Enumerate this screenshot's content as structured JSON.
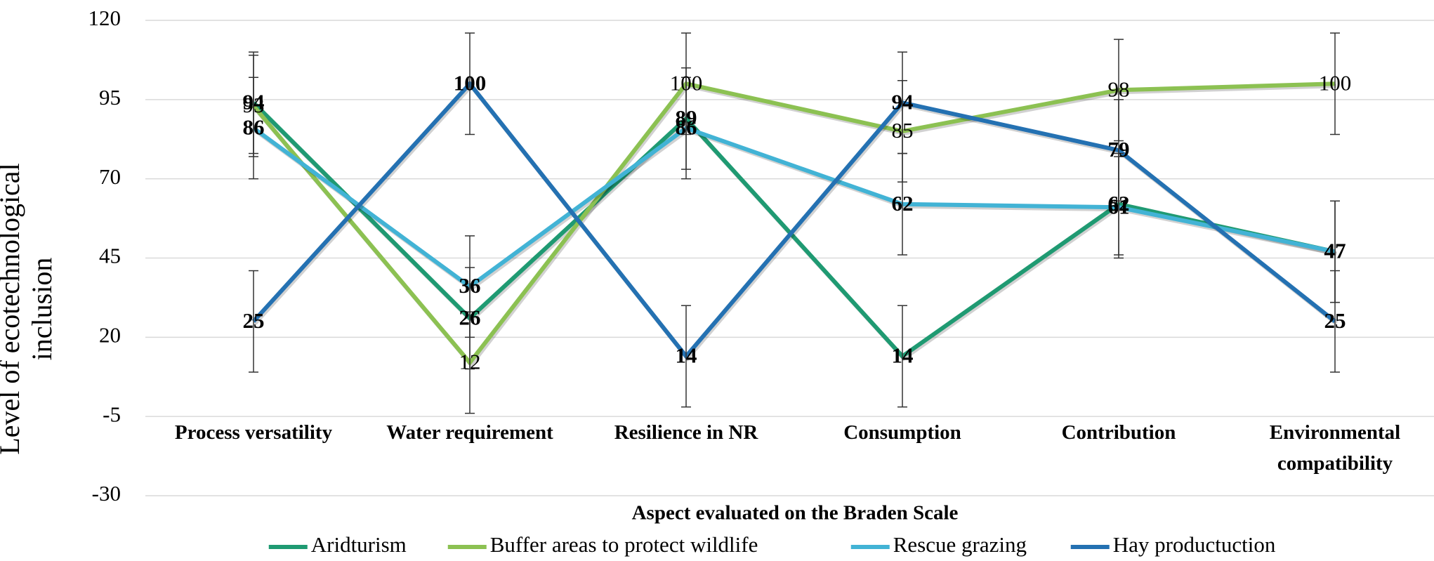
{
  "chart_data": {
    "type": "line",
    "y_label": "Level of ecotechnological inclusion",
    "x_label": "Aspect evaluated on the Braden Scale",
    "categories": [
      "Process versatility",
      "Water requirement",
      "Resilience in NR",
      "Consumption",
      "Contribution",
      "Environmental compatibility"
    ],
    "series": [
      {
        "name": "Aridturism",
        "color": "#1f9a72",
        "values": [
          94,
          26,
          89,
          14,
          62,
          47
        ],
        "errors": [
          16,
          16,
          16,
          16,
          16,
          16
        ]
      },
      {
        "name": "Buffer areas to protect wildlife",
        "color": "#8cc152",
        "values": [
          93,
          12,
          100,
          85,
          98,
          100
        ],
        "errors": [
          16,
          16,
          16,
          16,
          16,
          16
        ]
      },
      {
        "name": "Rescue grazing",
        "color": "#42b3d5",
        "values": [
          86,
          36,
          86,
          62,
          61,
          47
        ],
        "errors": [
          16,
          16,
          16,
          16,
          16,
          16
        ]
      },
      {
        "name": "Hay productuction",
        "color": "#2471b2",
        "values": [
          25,
          100,
          14,
          94,
          79,
          25
        ],
        "errors": [
          16,
          16,
          16,
          16,
          16,
          16
        ]
      }
    ],
    "ylim": [
      -30,
      120
    ],
    "yticks": [
      -30,
      -5,
      20,
      45,
      70,
      95,
      120
    ],
    "grid": true,
    "legend": "bottom"
  }
}
